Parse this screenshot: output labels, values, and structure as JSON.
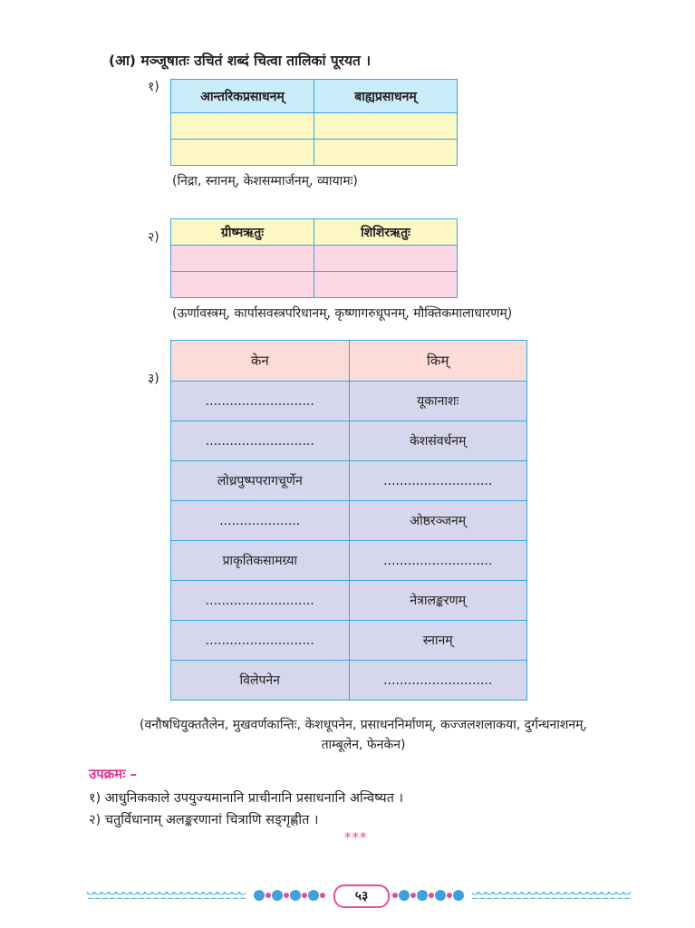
{
  "heading": "(आ) मञ्जूषातः उचितं शब्दं चित्वा तालिकां पूरयत ।",
  "table1": {
    "number": "१)",
    "headers": [
      "आन्तरिकप्रसाधनम्",
      "बाह्यप्रसाधनम्"
    ],
    "rows": [
      [
        "",
        ""
      ],
      [
        "",
        ""
      ]
    ],
    "hint": "(निद्रा, स्नानम्, केशसम्मार्जनम्, व्यायामः)"
  },
  "table2": {
    "number": "२)",
    "headers": [
      "ग्रीष्मऋतुः",
      "शिशिरऋतुः"
    ],
    "rows": [
      [
        "",
        ""
      ],
      [
        "",
        ""
      ]
    ],
    "hint": "(ऊर्णावस्त्रम्, कार्पासवस्त्रपरिधानम्, कृष्णागरुधूपनम्, मौक्तिकमालाधारणम्)"
  },
  "table3": {
    "number": "३)",
    "headers": [
      "केन",
      "किम्"
    ],
    "rows": [
      [
        "...........................",
        "यूकानाशः"
      ],
      [
        "...........................",
        "केशसंवर्धनम्"
      ],
      [
        "लोध्रपुष्पपरागचूर्णेन",
        "..........................."
      ],
      [
        "....................",
        "ओष्ठरञ्जनम्"
      ],
      [
        "प्राकृतिकसामग्र्या",
        "..........................."
      ],
      [
        "...........................",
        "नेत्रालङ्करणम्"
      ],
      [
        "...........................",
        "स्नानम्"
      ],
      [
        "विलेपनेन",
        "..........................."
      ]
    ],
    "hint_line1": "(वनौषधियुक्ततैलेन, मुखवर्णकान्तिः, केशधूपनेन, प्रसाधननिर्माणम्, कज्जलशलाकया, दुर्गन्धनाशनम्,",
    "hint_line2": "ताम्बूलेन, फेनकेन)"
  },
  "upakram": {
    "title": "उपक्रमः –",
    "items": [
      "१) आधुनिककाले उपयुज्यमानानि प्राचीनानि प्रसाधनानि अन्विष्यत ।",
      "२) चतुर्विधानाम् अलङ्करणानां चित्राणि सङ्गृह्णीत ।"
    ]
  },
  "stars": "***",
  "page_number": "५३",
  "colors": {
    "border": "#35a9e0",
    "pink_accent": "#e94a9a",
    "footer_blue": "#3fa2dc"
  }
}
